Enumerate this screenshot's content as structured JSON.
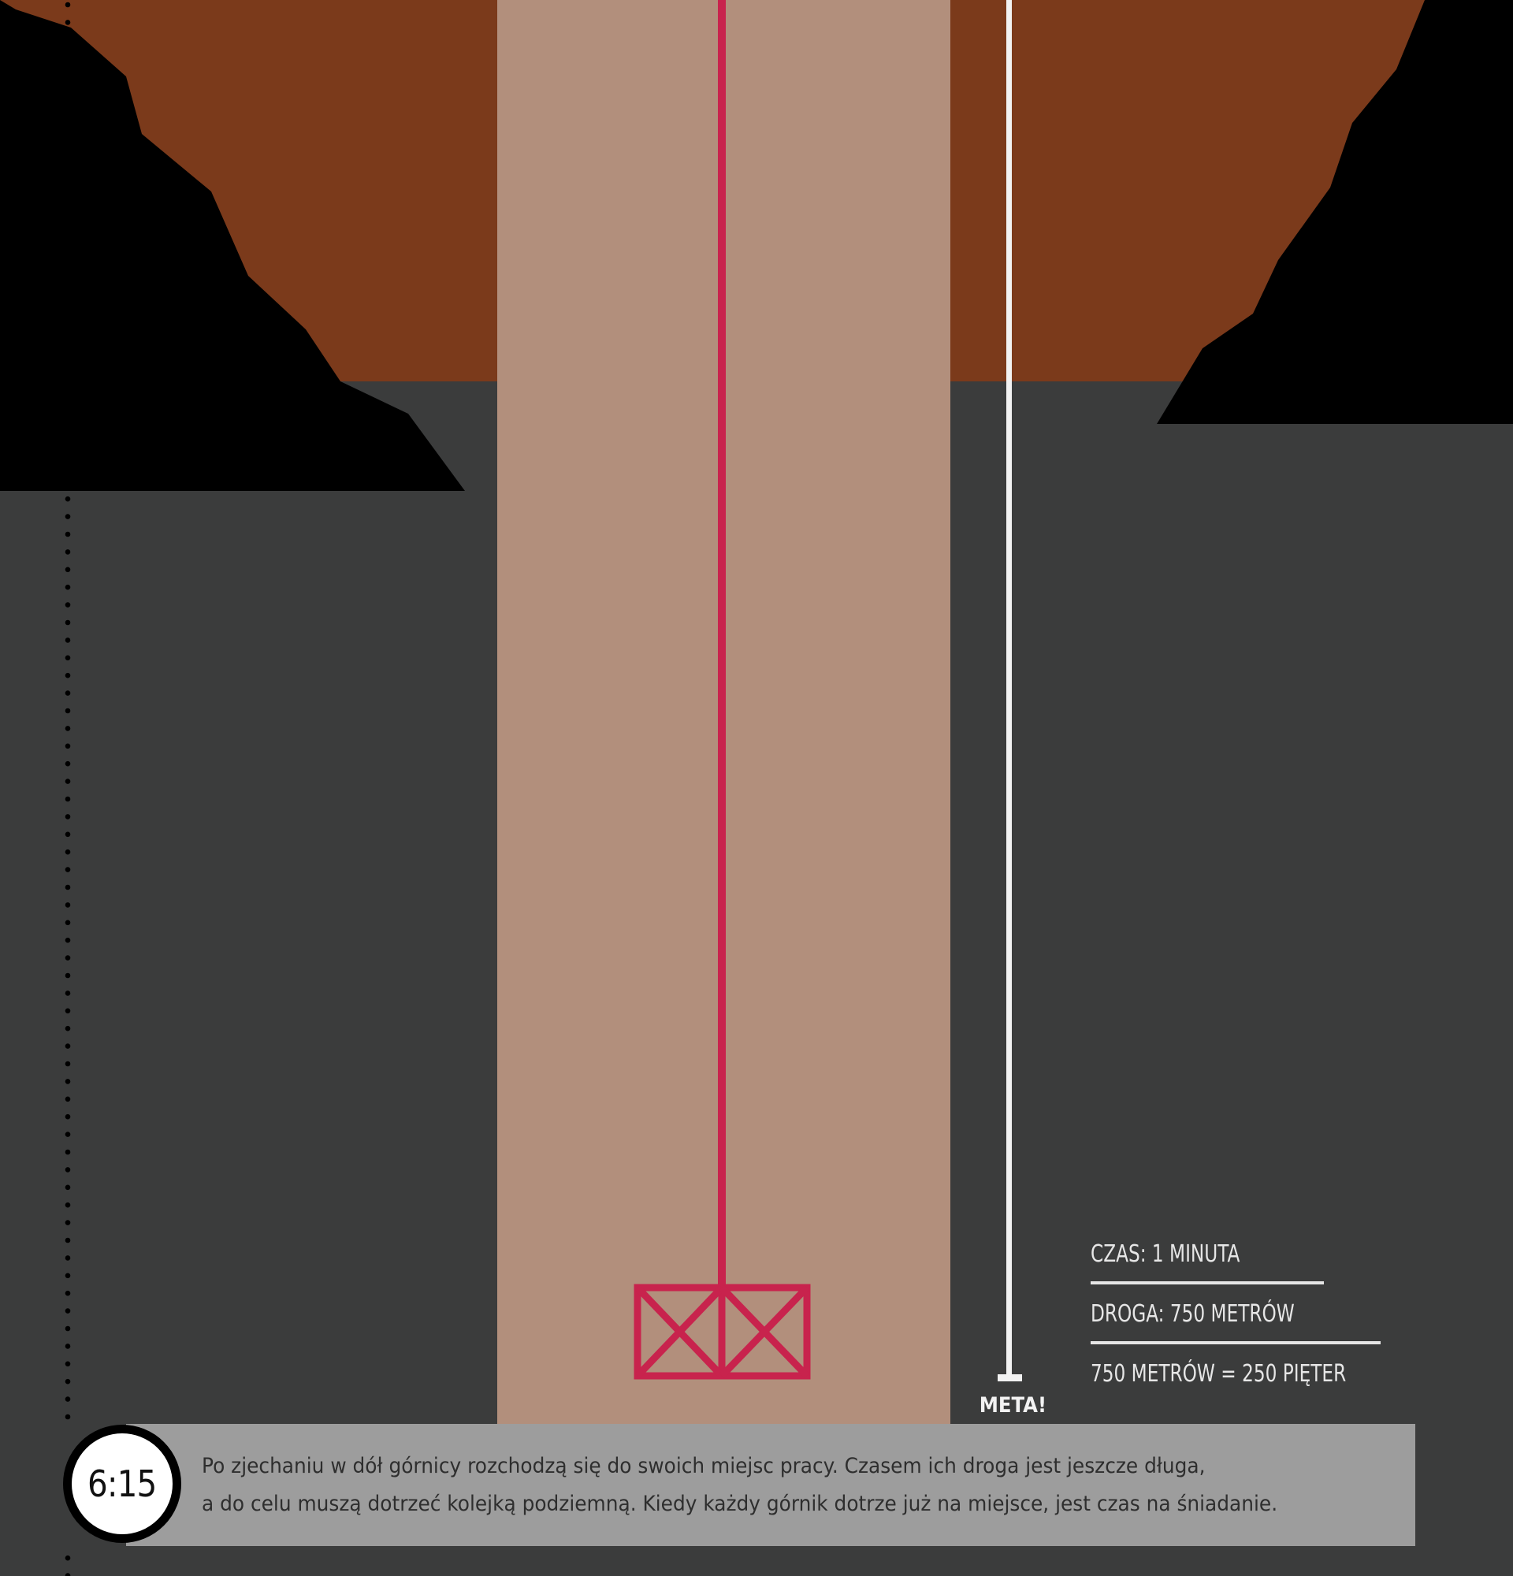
{
  "colors": {
    "underground": "#3b3c3c",
    "soil": "#7b3a1b",
    "rock": "#000000",
    "shaft": "#b28f7c",
    "cable": "#c8234d",
    "cage": "#c8234d",
    "finish_line": "#f2f2f2",
    "caption_background": "#9d9d9d",
    "clock_face": "#ffffff",
    "clock_ring": "#000000"
  },
  "icons": {
    "cage": "mining-cage-icon",
    "clock": "clock-badge"
  },
  "finish": {
    "label": "META!"
  },
  "stats": {
    "time": "CZAS: 1 MINUTA",
    "distance": "DROGA: 750 METRÓW",
    "equivalence": "750 METRÓW = 250 PIĘTER"
  },
  "clock": {
    "time": "6:15"
  },
  "caption": {
    "line1": "Po zjechaniu w dół górnicy rozchodzą się do swoich miejsc pracy. Czasem ich droga jest jeszcze długa,",
    "line2": "a do celu muszą dotrzeć kolejką podziemną. Kiedy każdy górnik dotrze już na miejsce, jest czas na śniadanie."
  }
}
